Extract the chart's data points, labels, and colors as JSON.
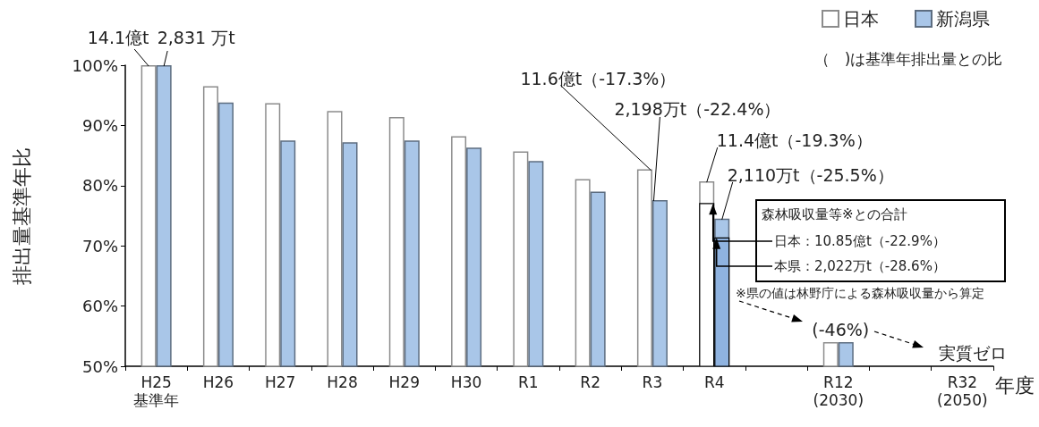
{
  "chart_data": {
    "type": "bar",
    "xlabel": "年度",
    "ylabel": "排出量基準年比",
    "categories": [
      "H25\n基準年",
      "H26",
      "H27",
      "H28",
      "H29",
      "H30",
      "R1",
      "R2",
      "R3",
      "R4",
      null,
      "R12\n(2030)",
      null,
      "R32\n(2050)"
    ],
    "series": [
      {
        "name": "日本",
        "color": "#ffffff",
        "values": [
          100,
          96.5,
          93.7,
          92.4,
          91.4,
          88.2,
          85.7,
          81.1,
          82.7,
          80.7,
          null,
          54,
          null,
          null
        ]
      },
      {
        "name": "新潟県",
        "color": "#a9c6e8",
        "values": [
          100,
          93.8,
          87.5,
          87.2,
          87.5,
          86.3,
          84.1,
          79.0,
          77.6,
          74.5,
          null,
          54,
          null,
          null
        ]
      },
      {
        "color": "#ffffff",
        "values": [
          null,
          null,
          null,
          null,
          null,
          null,
          null,
          null,
          null,
          77.1,
          null,
          null,
          null,
          null
        ]
      },
      {
        "color": "#8fb3e0",
        "values": [
          null,
          null,
          null,
          null,
          null,
          null,
          null,
          null,
          null,
          71.4,
          null,
          null,
          null,
          null
        ]
      }
    ],
    "ylim": [
      50,
      100
    ],
    "yticks": [
      {
        "value": 50,
        "label": "50%"
      },
      {
        "value": 60,
        "label": "60%"
      },
      {
        "value": 70,
        "label": "70%"
      },
      {
        "value": 80,
        "label": "80%"
      },
      {
        "value": 90,
        "label": "90%"
      },
      {
        "value": 100,
        "label": "100%"
      }
    ],
    "grid": false,
    "legend": "top right",
    "annotations": [
      {
        "text": "14.1億t",
        "x": "H25\n基準年",
        "y": 100
      },
      {
        "text": "2,831 万t",
        "x": "H25\n基準年",
        "y": 100
      },
      {
        "text": "11.6億t（-17.3%）",
        "x": "R3",
        "y": 82.7
      },
      {
        "text": "2,198万t（-22.4%）",
        "x": "R3",
        "y": 77.6
      },
      {
        "text": "11.4億t（-19.3%）",
        "x": "R4",
        "y": 80.7
      },
      {
        "text": "2,110万t（-25.5%）",
        "x": "R4",
        "y": 74.5
      },
      "森林吸収量等※との合計",
      {
        "text": "日本：10.85億t（-22.9%）",
        "x": "R4",
        "y": 77.1
      },
      {
        "text": "本県：2,022万t（-28.6%）",
        "x": "R4",
        "y": 71.4
      },
      "※県の値は林野庁による森林吸収量から算定",
      {
        "text": "(-46%)",
        "x": "R12\n(2030)",
        "y": 54
      },
      "実質ゼロ",
      "（　)は基準年排出量との比"
    ]
  }
}
